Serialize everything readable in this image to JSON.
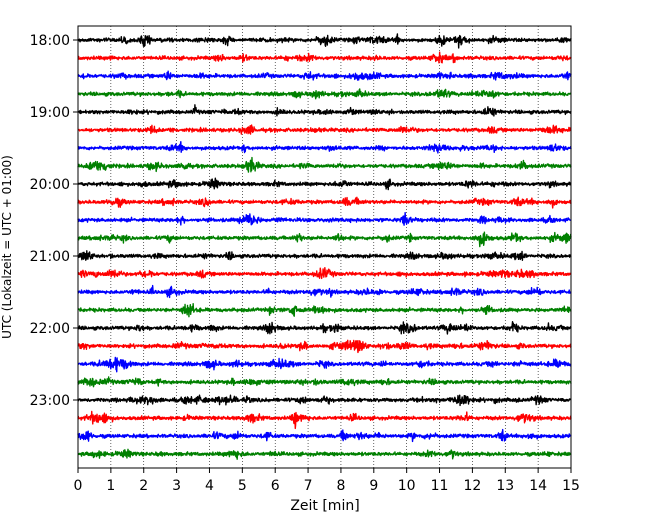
{
  "chart_data": {
    "type": "line",
    "title": "",
    "xlabel": "Zeit  [min]",
    "ylabel": "UTC (Lokalzeit = UTC + 01:00)",
    "xlim": [
      0,
      15
    ],
    "x_ticks": [
      "0",
      "1",
      "2",
      "3",
      "4",
      "5",
      "6",
      "7",
      "8",
      "9",
      "10",
      "11",
      "12",
      "13",
      "14",
      "15"
    ],
    "y_ticks": [
      "18:00",
      "19:00",
      "20:00",
      "21:00",
      "22:00",
      "23:00"
    ],
    "vertical_grid": true,
    "grid_style": "dotted",
    "trace_interval_minutes": 15,
    "start_time": "18:00",
    "color_cycle": [
      "#000000",
      "#ff0000",
      "#0000ff",
      "#008000"
    ],
    "trace_count": 24,
    "notable_events": [
      {
        "trace_time": "23:15",
        "minute": 6.6
      },
      {
        "trace_time": "23:30",
        "minute": 8.1
      }
    ]
  }
}
